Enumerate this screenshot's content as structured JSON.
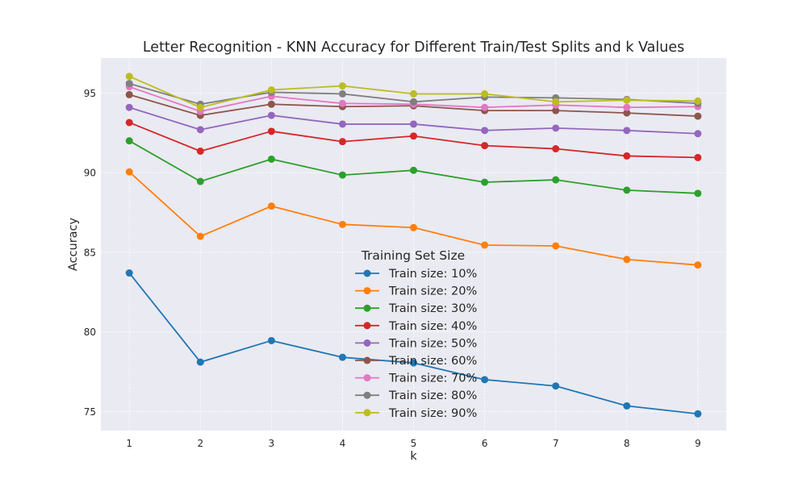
{
  "chart_data": {
    "type": "line",
    "title": "Letter Recognition - KNN Accuracy for Different Train/Test Splits and k Values",
    "xlabel": "k",
    "ylabel": "Accuracy",
    "x": [
      1,
      2,
      3,
      4,
      5,
      6,
      7,
      8,
      9
    ],
    "xticks": [
      "1",
      "2",
      "3",
      "4",
      "5",
      "6",
      "7",
      "8",
      "9"
    ],
    "yticks": [
      "75",
      "80",
      "85",
      "90",
      "95"
    ],
    "xlim": [
      0.6,
      9.4
    ],
    "ylim": [
      73.8,
      97.2
    ],
    "grid": true,
    "legend": {
      "title": "Training Set Size",
      "placement": "center"
    },
    "series": [
      {
        "name": "Train size: 10%",
        "color": "#1f77b4",
        "values": [
          83.7,
          78.1,
          79.45,
          78.4,
          78.05,
          77.0,
          76.6,
          75.35,
          74.85
        ]
      },
      {
        "name": "Train size: 20%",
        "color": "#ff7f0e",
        "values": [
          90.05,
          86.0,
          87.9,
          86.75,
          86.55,
          85.45,
          85.4,
          84.55,
          84.2
        ]
      },
      {
        "name": "Train size: 30%",
        "color": "#2ca02c",
        "values": [
          92.0,
          89.45,
          90.85,
          89.85,
          90.15,
          89.4,
          89.55,
          88.9,
          88.7
        ]
      },
      {
        "name": "Train size: 40%",
        "color": "#d62728",
        "values": [
          93.15,
          91.35,
          92.6,
          91.95,
          92.3,
          91.7,
          91.5,
          91.05,
          90.95
        ]
      },
      {
        "name": "Train size: 50%",
        "color": "#9467bd",
        "values": [
          94.1,
          92.7,
          93.6,
          93.05,
          93.05,
          92.65,
          92.8,
          92.65,
          92.45
        ]
      },
      {
        "name": "Train size: 60%",
        "color": "#8c564b",
        "values": [
          94.9,
          93.6,
          94.3,
          94.15,
          94.2,
          93.9,
          93.9,
          93.75,
          93.55
        ]
      },
      {
        "name": "Train size: 70%",
        "color": "#e377c2",
        "values": [
          95.4,
          93.85,
          94.8,
          94.35,
          94.3,
          94.1,
          94.25,
          94.1,
          94.15
        ]
      },
      {
        "name": "Train size: 80%",
        "color": "#7f7f7f",
        "values": [
          95.6,
          94.3,
          95.05,
          94.95,
          94.45,
          94.75,
          94.7,
          94.6,
          94.35
        ]
      },
      {
        "name": "Train size: 90%",
        "color": "#bcbd22",
        "values": [
          96.05,
          94.1,
          95.2,
          95.45,
          94.95,
          94.95,
          94.45,
          94.55,
          94.5
        ]
      }
    ]
  }
}
